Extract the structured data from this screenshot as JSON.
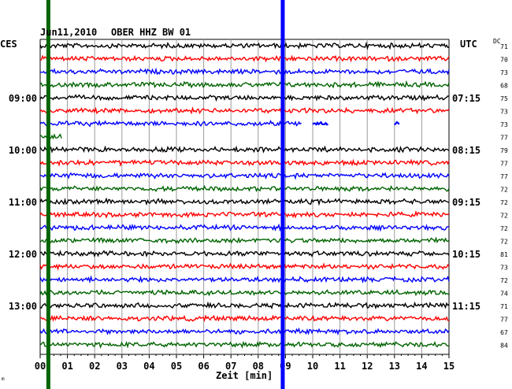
{
  "header": {
    "date": "Jun11,2010",
    "station": "OBER HHZ BW 01",
    "left_zone": "CES",
    "right_zone": "UTC",
    "dc_label": "DC"
  },
  "footer": {
    "xlabel": "Zeit [min]",
    "corner_mark": "m"
  },
  "chart_data": {
    "type": "line",
    "title": "Jun11,2010   OBER HHZ BW 01",
    "xlabel": "Zeit [min]",
    "xlim": [
      0,
      15
    ],
    "x_ticks": [
      "00",
      "01",
      "02",
      "03",
      "04",
      "05",
      "06",
      "07",
      "08",
      "09",
      "10",
      "11",
      "12",
      "13",
      "14",
      "15"
    ],
    "trace_colors": [
      "#000000",
      "#ff0000",
      "#0000ff",
      "#006400"
    ],
    "trace_count": 24,
    "left_time_labels": [
      {
        "trace": 4,
        "text": "09:00"
      },
      {
        "trace": 8,
        "text": "10:00"
      },
      {
        "trace": 12,
        "text": "11:00"
      },
      {
        "trace": 16,
        "text": "12:00"
      },
      {
        "trace": 20,
        "text": "13:00"
      }
    ],
    "right_time_labels": [
      {
        "trace": 4,
        "text": "07:15"
      },
      {
        "trace": 8,
        "text": "08:15"
      },
      {
        "trace": 12,
        "text": "09:15"
      },
      {
        "trace": 16,
        "text": "10:15"
      },
      {
        "trace": 20,
        "text": "11:15"
      }
    ],
    "dc_values": [
      71,
      70,
      73,
      68,
      75,
      73,
      73,
      77,
      79,
      77,
      77,
      72,
      72,
      72,
      72,
      72,
      81,
      73,
      72,
      74,
      71,
      77,
      67,
      84
    ],
    "markers": [
      {
        "color": "#006400",
        "x": 0.3
      },
      {
        "color": "#0000ff",
        "x": 8.9
      }
    ],
    "gaps": [
      {
        "trace": 6,
        "from": 9.6,
        "to": 15
      },
      {
        "trace": 7,
        "from": 0.8,
        "to": 15
      }
    ],
    "gap_fragments": [
      {
        "trace": 6,
        "from": 10.0,
        "to": 10.6
      },
      {
        "trace": 6,
        "from": 13.0,
        "to": 13.2
      }
    ],
    "grid": true
  }
}
